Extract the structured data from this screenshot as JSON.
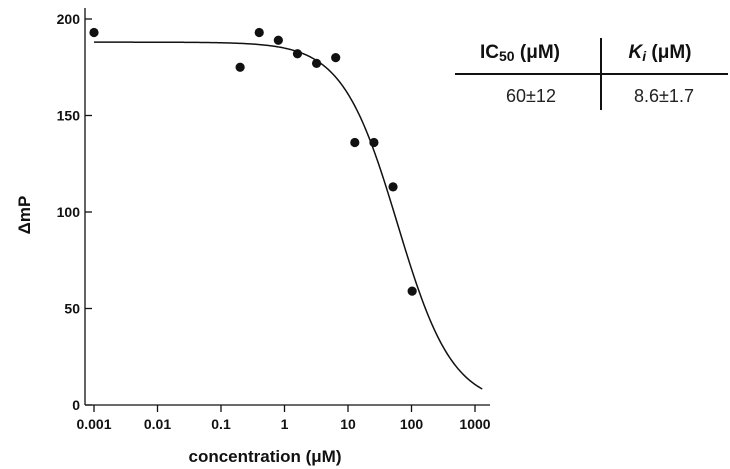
{
  "chart_data": {
    "type": "scatter",
    "xscale": "log",
    "xlim": [
      0.001,
      1500
    ],
    "ylim": [
      0,
      200
    ],
    "xticks": [
      {
        "value": 0.001,
        "label": "0.001"
      },
      {
        "value": 0.01,
        "label": "0.01"
      },
      {
        "value": 0.1,
        "label": "0.1"
      },
      {
        "value": 1,
        "label": "1"
      },
      {
        "value": 10,
        "label": "10"
      },
      {
        "value": 100,
        "label": "100"
      },
      {
        "value": 1000,
        "label": "1000"
      }
    ],
    "yticks": [
      {
        "value": 0,
        "label": "0"
      },
      {
        "value": 50,
        "label": "50"
      },
      {
        "value": 100,
        "label": "100"
      },
      {
        "value": 150,
        "label": "150"
      },
      {
        "value": 200,
        "label": "200"
      }
    ],
    "xlabel": "concentration (μM)",
    "ylabel": "ΔmP",
    "grid": false,
    "points": [
      {
        "x": 0.001,
        "y": 193
      },
      {
        "x": 0.2,
        "y": 175
      },
      {
        "x": 0.4,
        "y": 193
      },
      {
        "x": 0.8,
        "y": 189
      },
      {
        "x": 1.6,
        "y": 182
      },
      {
        "x": 3.2,
        "y": 177
      },
      {
        "x": 6.4,
        "y": 180
      },
      {
        "x": 12.8,
        "y": 136
      },
      {
        "x": 25.6,
        "y": 136
      },
      {
        "x": 51.2,
        "y": 113
      },
      {
        "x": 102.4,
        "y": 59
      }
    ],
    "fit": {
      "type": "sigmoid",
      "top": 188,
      "bottom": 0,
      "ic50": 60,
      "hill": 1,
      "x_range": [
        0.001,
        1300
      ]
    }
  },
  "table": {
    "headers": {
      "ic50_main": "IC",
      "ic50_sub": "50",
      "ic50_unit": " (μM)",
      "ki_main": "K",
      "ki_sub": "i",
      "ki_unit": " (μM)"
    },
    "values": {
      "ic50": "60±12",
      "ki": "8.6±1.7"
    }
  }
}
